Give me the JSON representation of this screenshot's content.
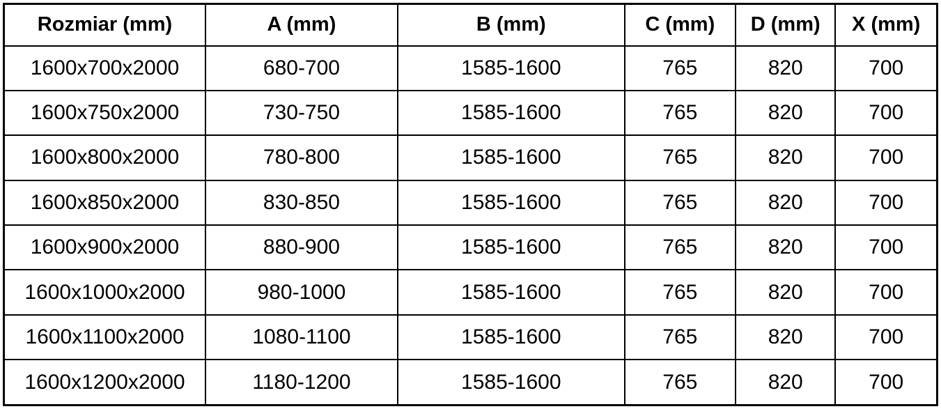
{
  "colors": {
    "border": "#000000",
    "text": "#000000",
    "background": "#ffffff"
  },
  "chart_data": {
    "type": "table",
    "title": "",
    "columns": [
      "Rozmiar (mm)",
      "A (mm)",
      "B (mm)",
      "C (mm)",
      "D (mm)",
      "X (mm)"
    ],
    "rows": [
      [
        "1600x700x2000",
        "680-700",
        "1585-1600",
        "765",
        "820",
        "700"
      ],
      [
        "1600x750x2000",
        "730-750",
        "1585-1600",
        "765",
        "820",
        "700"
      ],
      [
        "1600x800x2000",
        "780-800",
        "1585-1600",
        "765",
        "820",
        "700"
      ],
      [
        "1600x850x2000",
        "830-850",
        "1585-1600",
        "765",
        "820",
        "700"
      ],
      [
        "1600x900x2000",
        "880-900",
        "1585-1600",
        "765",
        "820",
        "700"
      ],
      [
        "1600x1000x2000",
        "980-1000",
        "1585-1600",
        "765",
        "820",
        "700"
      ],
      [
        "1600x1100x2000",
        "1080-1100",
        "1585-1600",
        "765",
        "820",
        "700"
      ],
      [
        "1600x1200x2000",
        "1180-1200",
        "1585-1600",
        "765",
        "820",
        "700"
      ]
    ]
  }
}
